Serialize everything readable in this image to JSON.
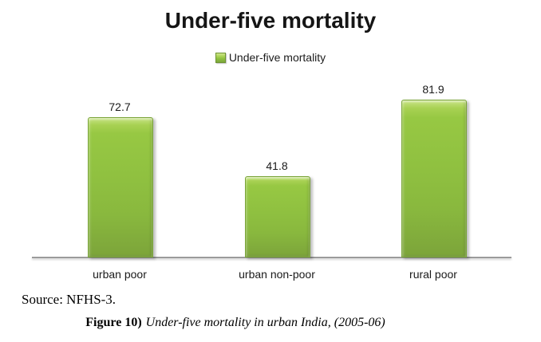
{
  "chart_data": {
    "type": "bar",
    "title": "Under-five mortality",
    "categories": [
      "urban poor",
      "urban non-poor",
      "rural poor"
    ],
    "values": [
      72.7,
      41.8,
      81.9
    ],
    "value_labels": [
      "72.7",
      "41.8",
      "81.9"
    ],
    "series_name": "Under-five mortality",
    "xlabel": "",
    "ylabel": "",
    "ylim": [
      0,
      90
    ],
    "y_axis_visible": false,
    "gridlines": false,
    "data_labels_shown": true,
    "legend_position": "top-center",
    "bar_color": "#8fc040",
    "bar_highlight_color": "#c9e487",
    "bar_border_color": "#79a437",
    "axis_line_color": "#9b9b9b"
  },
  "chart": {
    "title": "Under-five mortality",
    "legend_label": "Under-five mortality"
  },
  "footer": {
    "source": "Source: NFHS-3.",
    "figure_label": "Figure 10)",
    "figure_title": "Under-five mortality in urban India, (2005-06)"
  }
}
